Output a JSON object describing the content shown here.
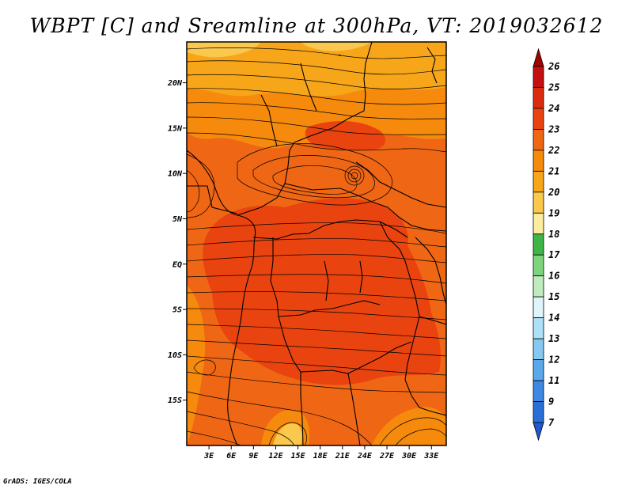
{
  "title": "WBPT [C] and Sreamline at 300hPa, VT: 2019032612",
  "credit": "GrADS: IGES/COLA",
  "map": {
    "lon_range": [
      0,
      35
    ],
    "lat_range": [
      -20,
      24.5
    ],
    "lat_ticks": [
      {
        "value": 20,
        "label": "20N"
      },
      {
        "value": 15,
        "label": "15N"
      },
      {
        "value": 10,
        "label": "10N"
      },
      {
        "value": 5,
        "label": "5N"
      },
      {
        "value": 0,
        "label": "EQ"
      },
      {
        "value": -5,
        "label": "5S"
      },
      {
        "value": -10,
        "label": "10S"
      },
      {
        "value": -15,
        "label": "15S"
      }
    ],
    "lon_ticks": [
      {
        "value": 3,
        "label": "3E"
      },
      {
        "value": 6,
        "label": "6E"
      },
      {
        "value": 9,
        "label": "9E"
      },
      {
        "value": 12,
        "label": "12E"
      },
      {
        "value": 15,
        "label": "15E"
      },
      {
        "value": 18,
        "label": "18E"
      },
      {
        "value": 21,
        "label": "21E"
      },
      {
        "value": 24,
        "label": "24E"
      },
      {
        "value": 27,
        "label": "27E"
      },
      {
        "value": 30,
        "label": "30E"
      },
      {
        "value": 33,
        "label": "33E"
      }
    ]
  },
  "colorbar": {
    "levels": [
      "26",
      "25",
      "24",
      "23",
      "22",
      "21",
      "20",
      "19",
      "18",
      "17",
      "16",
      "15",
      "14",
      "13",
      "12",
      "11",
      "9",
      "7"
    ],
    "colors": [
      "#a50000",
      "#c31010",
      "#dc2b0d",
      "#e94410",
      "#ef6615",
      "#f58a0d",
      "#f7a61a",
      "#f9c84c",
      "#fbec9e",
      "#3fb548",
      "#7ed47c",
      "#bfebbe",
      "#e0f4fb",
      "#aee0f8",
      "#86c8f2",
      "#5ba8ec",
      "#3d88e2",
      "#2a6fd8",
      "#1f58cf"
    ],
    "units": "C"
  },
  "field_colors": {
    "base": "#ef6615",
    "warm": "#e94410",
    "cool": "#f58a0d",
    "coolest": "#f7a61a",
    "pale": "#f9c84c"
  }
}
